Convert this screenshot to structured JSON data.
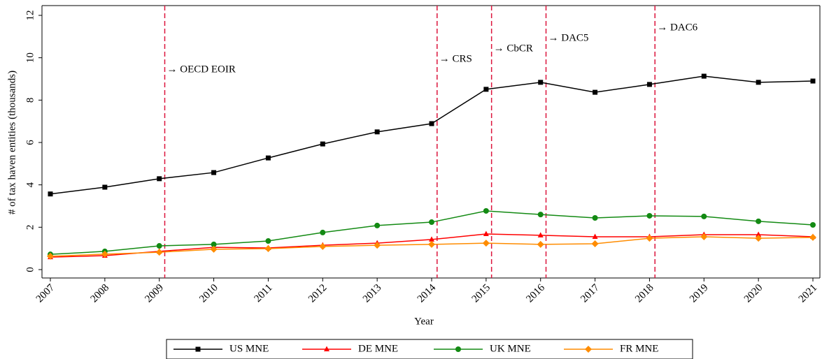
{
  "chart_data": {
    "type": "line",
    "xlabel": "Year",
    "ylabel": "# of tax haven entities (thousands)",
    "x": [
      2007,
      2008,
      2009,
      2010,
      2011,
      2012,
      2013,
      2014,
      2015,
      2016,
      2017,
      2018,
      2019,
      2020,
      2021
    ],
    "xlim": [
      2007,
      2021
    ],
    "xticks": [
      2007,
      2008,
      2009,
      2010,
      2011,
      2012,
      2013,
      2014,
      2015,
      2016,
      2017,
      2018,
      2019,
      2020,
      2021
    ],
    "ylim": [
      0,
      12
    ],
    "yticks": [
      0,
      2,
      4,
      6,
      8,
      10,
      12
    ],
    "grid": false,
    "legend": "bottom",
    "series": [
      {
        "name": "US MNE",
        "color": "#000000",
        "marker": "square",
        "values": [
          3.57,
          3.89,
          4.29,
          4.58,
          5.27,
          5.93,
          6.5,
          6.89,
          8.51,
          8.84,
          8.37,
          8.74,
          9.13,
          8.84,
          8.9
        ]
      },
      {
        "name": "DE MNE",
        "color": "#ff0000",
        "marker": "triangle",
        "values": [
          0.59,
          0.66,
          0.86,
          1.05,
          1.02,
          1.15,
          1.25,
          1.42,
          1.68,
          1.62,
          1.55,
          1.55,
          1.65,
          1.65,
          1.55
        ]
      },
      {
        "name": "UK MNE",
        "color": "#138a13",
        "marker": "circle",
        "values": [
          0.72,
          0.86,
          1.12,
          1.19,
          1.35,
          1.75,
          2.08,
          2.24,
          2.77,
          2.6,
          2.44,
          2.54,
          2.51,
          2.28,
          2.11
        ]
      },
      {
        "name": "FR MNE",
        "color": "#ff8c00",
        "marker": "diamond",
        "values": [
          0.63,
          0.73,
          0.82,
          0.96,
          0.99,
          1.09,
          1.15,
          1.19,
          1.25,
          1.19,
          1.22,
          1.48,
          1.55,
          1.48,
          1.52
        ]
      }
    ],
    "annotations": [
      {
        "x": 2009.1,
        "label": "→ OECD EOIR"
      },
      {
        "x": 2014.1,
        "label": "→ CRS"
      },
      {
        "x": 2015.1,
        "label": "→ CbCR"
      },
      {
        "x": 2016.1,
        "label": "→ DAC5"
      },
      {
        "x": 2018.1,
        "label": "→ DAC6"
      }
    ],
    "annotation_color": "#dc143c"
  }
}
